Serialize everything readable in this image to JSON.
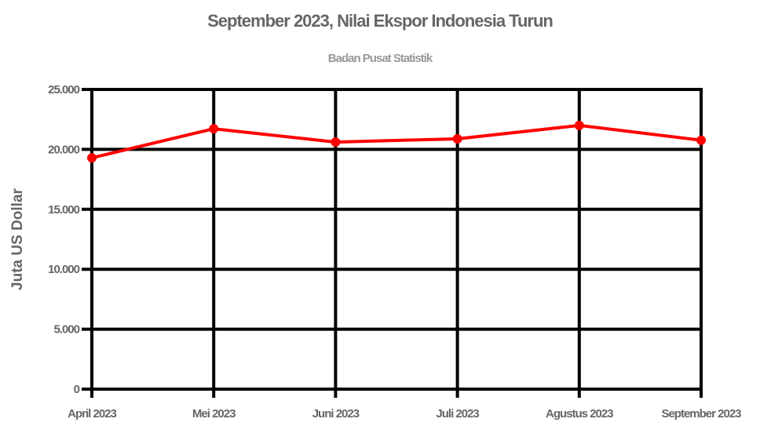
{
  "chart_data": {
    "type": "line",
    "title": "September 2023, Nilai Ekspor Indonesia Turun",
    "subtitle": "Badan Pusat Statistik",
    "xlabel": "",
    "ylabel": "Juta US Dollar",
    "categories": [
      "April 2023",
      "Mei 2023",
      "Juni 2023",
      "Juli 2023",
      "Agustus 2023",
      "September 2023"
    ],
    "series": [
      {
        "name": "Nilai Ekspor",
        "color": "#ff0000",
        "values": [
          19290,
          21720,
          20610,
          20880,
          22000,
          20760
        ]
      }
    ],
    "ylim": [
      0,
      25000
    ],
    "yticks": [
      0,
      5000,
      10000,
      15000,
      20000,
      25000
    ],
    "ytick_labels": [
      "0",
      "5.000",
      "10.000",
      "15.000",
      "20.000",
      "25.000"
    ],
    "grid": true,
    "legend": "none"
  },
  "colors": {
    "line": "#ff0000",
    "grid": "#000000",
    "text": "#666666",
    "subtitle": "#999999"
  }
}
